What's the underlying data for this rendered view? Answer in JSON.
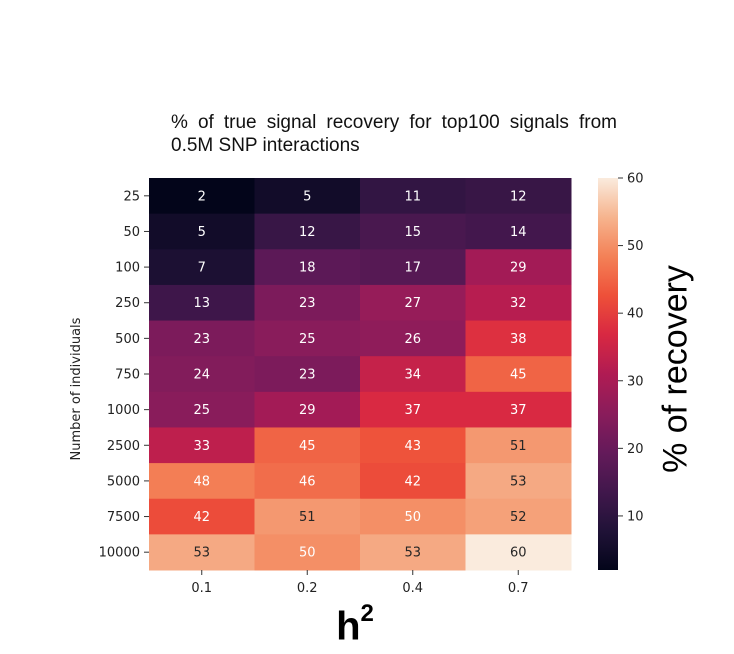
{
  "chart_data": {
    "type": "heatmap",
    "title": "% of true signal recovery for top100 signals from 0.5M SNP interactions",
    "xlabel_base": "h",
    "xlabel_sup": "2",
    "ylabel": "Number of individuals",
    "colorbar_label": "% of recovery",
    "x_categories": [
      "0.1",
      "0.2",
      "0.4",
      "0.7"
    ],
    "y_categories": [
      "25",
      "50",
      "100",
      "250",
      "500",
      "750",
      "1000",
      "2500",
      "5000",
      "7500",
      "10000"
    ],
    "values": [
      [
        2,
        5,
        11,
        12
      ],
      [
        5,
        12,
        15,
        14
      ],
      [
        7,
        18,
        17,
        29
      ],
      [
        13,
        23,
        27,
        32
      ],
      [
        23,
        25,
        26,
        38
      ],
      [
        24,
        23,
        34,
        45
      ],
      [
        25,
        29,
        37,
        37
      ],
      [
        33,
        45,
        43,
        51
      ],
      [
        48,
        46,
        42,
        53
      ],
      [
        42,
        51,
        50,
        52
      ],
      [
        53,
        50,
        53,
        60
      ]
    ],
    "colorbar_ticks": [
      10,
      20,
      30,
      40,
      50,
      60
    ],
    "vmin": 2,
    "vmax": 60,
    "colormap": "rocket"
  }
}
